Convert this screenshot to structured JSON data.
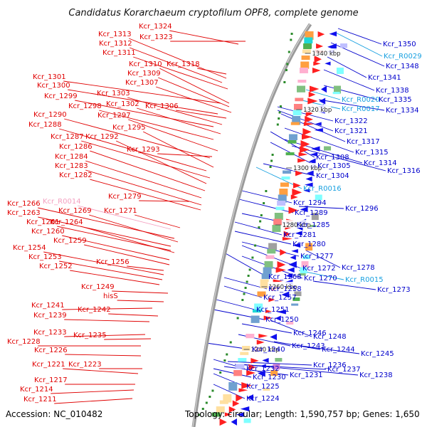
{
  "title": "Candidatus Korarchaeum cryptofilum OPF8, complete genome",
  "accession": "Accession: NC_010482",
  "topology": "Topology: circular; Length: 1,590,757 bp; Genes: 1,650",
  "colors": {
    "left_label": "#e00000",
    "right_label": "#0000cc",
    "rna_label": "#18a0e0",
    "faint_label": "#f4a0c0",
    "forward_arrow": "#ff2020",
    "reverse_arrow": "#1010ee"
  },
  "kbp_marks": [
    "1340 kbp",
    "1320 kbp",
    "1300 kbp",
    "1280 kbp",
    "1260 kbp",
    "1240 kbp"
  ],
  "left_labels": [
    "Kcr_1324",
    "Kcr_1323",
    "Kcr_1313",
    "Kcr_1312",
    "Kcr_1311",
    "Kcr_1318",
    "Kcr_1310",
    "Kcr_1309",
    "Kcr_1301",
    "Kcr_1307",
    "Kcr_1300",
    "Kcr_1303",
    "Kcr_1299",
    "Kcr_1302",
    "Kcr_1306",
    "Kcr_1298",
    "Kcr_1297",
    "Kcr_1290",
    "Kcr_1295",
    "Kcr_1288",
    "Kcr_1287",
    "Kcr_1292",
    "Kcr_1286",
    "Kcr_1293",
    "Kcr_1284",
    "Kcr_1283",
    "Kcr_1282",
    "Kcr_1279",
    "Kcr_R0014",
    "Kcr_1266",
    "Kcr_1269",
    "Kcr_1271",
    "Kcr_1263",
    "Kcr_1261",
    "Kcr_1264",
    "Kcr_1260",
    "Kcr_1259",
    "Kcr_1254",
    "Kcr_1253",
    "Kcr_1256",
    "Kcr_1252",
    "Kcr_1249",
    "hisS",
    "Kcr_1241",
    "Kcr_1242",
    "Kcr_1239",
    "Kcr_1233",
    "Kcr_1235",
    "Kcr_1228",
    "Kcr_1226",
    "Kcr_1221",
    "Kcr_1223",
    "Kcr_1217",
    "Kcr_1214",
    "Kcr_1211"
  ],
  "right_labels": [
    "Kcr_1350",
    "Kcr_R0029",
    "Kcr_1348",
    "Kcr_1341",
    "Kcr_1338",
    "Kcr_R0020",
    "Kcr_1335",
    "Kcr_R0017",
    "Kcr_1334",
    "Kcr_1322",
    "Kcr_1321",
    "Kcr_1317",
    "Kcr_1315",
    "Kcr_1308",
    "Kcr_1314",
    "Kcr_1305",
    "Kcr_1316",
    "Kcr_1304",
    "Kcr_R0016",
    "Kcr_1294",
    "Kcr_1296",
    "Kcr_1289",
    "Kcr_1285",
    "Kcr_1281",
    "Kcr_1280",
    "Kcr_1277",
    "Kcr_1272",
    "Kcr_1278",
    "Kcr_1268",
    "Kcr_1270",
    "Kcr_R0015",
    "Kcr_1258",
    "Kcr_1273",
    "Kcr_1257",
    "Kcr_1251",
    "Kcr_1250",
    "Kcr_1246",
    "Kcr_1248",
    "Kcr_1243",
    "Kcr_1244",
    "Kcr_1240",
    "Kcr_1245",
    "Kcr_1232",
    "Kcr_1236",
    "Kcr_1237",
    "Kcr_1230",
    "Kcr_1231",
    "Kcr_1238",
    "Kcr_1225",
    "Kcr_1224"
  ]
}
